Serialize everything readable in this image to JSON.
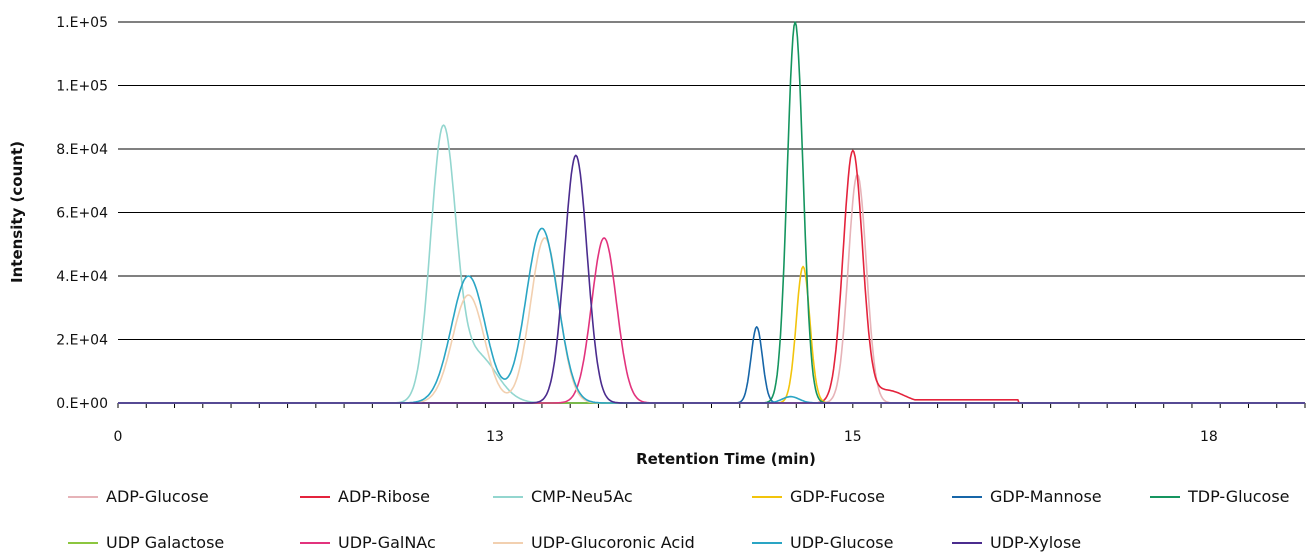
{
  "chart_data": {
    "type": "line",
    "title": "",
    "xlabel": "Retention Time (min)",
    "ylabel": "Intensity (count)",
    "xlim": [
      0,
      21
    ],
    "ylim": [
      0,
      120000
    ],
    "x_ticks": [
      {
        "value": 0,
        "label": "0"
      },
      {
        "value": 6.67,
        "label": "13"
      },
      {
        "value": 13,
        "label": "15"
      },
      {
        "value": 19.3,
        "label": "18"
      }
    ],
    "y_ticks": [
      {
        "value": 0,
        "label": "0.E+00"
      },
      {
        "value": 20000,
        "label": "2.E+04"
      },
      {
        "value": 40000,
        "label": "4.E+04"
      },
      {
        "value": 60000,
        "label": "6.E+04"
      },
      {
        "value": 80000,
        "label": "8.E+04"
      },
      {
        "value": 100000,
        "label": "1.E+05"
      },
      {
        "value": 120000,
        "label": "1.E+05"
      }
    ],
    "grid": "horizontal",
    "legend_position": "bottom",
    "series": [
      {
        "name": "ADP-Glucose",
        "color": "#e6b3b8",
        "peaks": [
          {
            "center": 13.08,
            "height": 72000,
            "sigma": 0.16
          }
        ]
      },
      {
        "name": "ADP-Ribose",
        "color": "#e4233c",
        "peaks": [
          {
            "center": 13.0,
            "height": 79000,
            "sigma": 0.17
          },
          {
            "center": 13.6,
            "height": 4000,
            "sigma": 0.3
          }
        ],
        "tail": {
          "from": 13.7,
          "to": 15.93,
          "level": 1000
        }
      },
      {
        "name": "CMP-Neu5Ac",
        "color": "#93d6cf",
        "peaks": [
          {
            "center": 5.75,
            "height": 84000,
            "sigma": 0.22
          },
          {
            "center": 6.35,
            "height": 15000,
            "sigma": 0.35
          }
        ]
      },
      {
        "name": "GDP-Fucose",
        "color": "#f2c40c",
        "peaks": [
          {
            "center": 12.12,
            "height": 43000,
            "sigma": 0.12
          }
        ]
      },
      {
        "name": "GDP-Mannose",
        "color": "#1766a8",
        "peaks": [
          {
            "center": 11.3,
            "height": 24000,
            "sigma": 0.1
          }
        ]
      },
      {
        "name": "TDP-Glucose",
        "color": "#15955f",
        "peaks": [
          {
            "center": 11.98,
            "height": 120000,
            "sigma": 0.14
          }
        ]
      },
      {
        "name": "UDP Galactose",
        "color": "#8cc63f",
        "peaks": []
      },
      {
        "name": "UDP-GalNAc",
        "color": "#e2337d",
        "peaks": [
          {
            "center": 8.6,
            "height": 52000,
            "sigma": 0.22
          }
        ]
      },
      {
        "name": "UDP-Glucoronic Acid",
        "color": "#f2d0b0",
        "peaks": [
          {
            "center": 6.2,
            "height": 34000,
            "sigma": 0.28
          },
          {
            "center": 7.55,
            "height": 52000,
            "sigma": 0.25
          }
        ]
      },
      {
        "name": "UDP-Glucose",
        "color": "#2aa5c4",
        "peaks": [
          {
            "center": 6.2,
            "height": 40000,
            "sigma": 0.3
          },
          {
            "center": 7.5,
            "height": 55000,
            "sigma": 0.28
          },
          {
            "center": 11.9,
            "height": 2000,
            "sigma": 0.15
          }
        ]
      },
      {
        "name": "UDP-Xylose",
        "color": "#4b2c8e",
        "peaks": [
          {
            "center": 8.1,
            "height": 78000,
            "sigma": 0.2
          }
        ]
      }
    ]
  }
}
